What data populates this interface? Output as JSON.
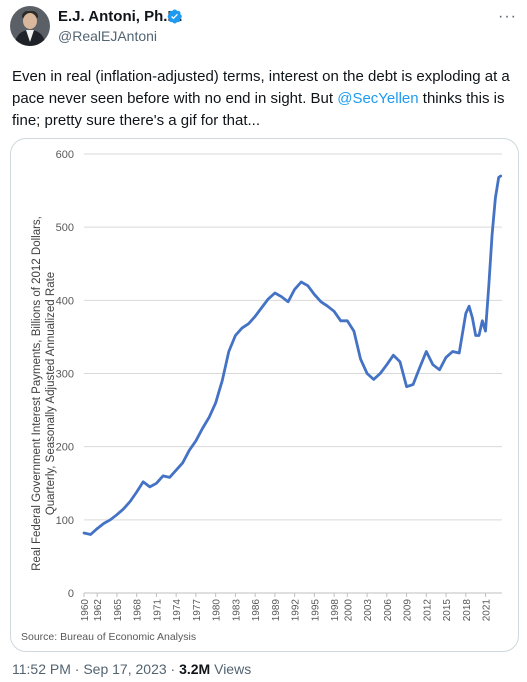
{
  "author": {
    "name": "E.J. Antoni, Ph.D.",
    "handle": "@RealEJAntoni",
    "verified": true,
    "verified_color": "#1d9bf0"
  },
  "menu_icon": "more-icon",
  "tweet": {
    "text_before": "Even in real (inflation-adjusted) terms, interest on the debt is exploding at a pace never seen before with no end in sight. But ",
    "mention": "@SecYellen",
    "text_after": " thinks this is fine; pretty sure there's a gif for that...",
    "mention_color": "#1d9bf0"
  },
  "footer": {
    "time": "11:52 PM",
    "separator": "·",
    "date": "Sep 17, 2023",
    "views_count": "3.2M",
    "views_label": "Views"
  },
  "chart_data": {
    "type": "line",
    "title": "",
    "ylabel": "Real Federal Government Interest Payments, Billions of 2012 Dollars, Quarterly, Seasonally Adjusted Annualized Rate",
    "ylabel_lines": [
      "Real Federal Government Interest Payments, Billions of 2012 Dollars,",
      "Quarterly, Seasonally Adjusted Annualized Rate"
    ],
    "xlabel": "",
    "source": "Source: Bureau of Economic Analysis",
    "line_color": "#4472c4",
    "grid": true,
    "ylim": [
      0,
      600
    ],
    "xlim": [
      1960,
      2023.5
    ],
    "y_ticks": [
      0,
      100,
      200,
      300,
      400,
      500,
      600
    ],
    "x_ticks": [
      1960,
      1962,
      1965,
      1968,
      1971,
      1974,
      1977,
      1980,
      1983,
      1986,
      1989,
      1992,
      1995,
      1998,
      2000,
      2003,
      2006,
      2009,
      2012,
      2015,
      2018,
      2021
    ],
    "series": [
      {
        "x": [
          1960,
          1961,
          1962,
          1963,
          1964,
          1965,
          1966,
          1967,
          1968,
          1969,
          1970,
          1971,
          1972,
          1973,
          1974,
          1975,
          1976,
          1977,
          1978,
          1979,
          1980,
          1980.5,
          1981,
          1982,
          1983,
          1984,
          1985,
          1986,
          1987,
          1988,
          1989,
          1990,
          1991,
          1992,
          1993,
          1994,
          1995,
          1996,
          1997,
          1998,
          1999,
          2000,
          2001,
          2002,
          2003,
          2003.5,
          2004,
          2005,
          2006,
          2007,
          2008,
          2009,
          2010,
          2011,
          2012,
          2013,
          2014,
          2015,
          2016,
          2017,
          2018,
          2018.5,
          2019,
          2019.5,
          2020,
          2020.5,
          2021,
          2021.5,
          2022,
          2022.5,
          2023,
          2023.3
        ],
        "values": [
          82,
          80,
          88,
          95,
          100,
          107,
          115,
          125,
          138,
          152,
          145,
          150,
          160,
          158,
          168,
          178,
          195,
          208,
          225,
          240,
          260,
          275,
          290,
          330,
          352,
          362,
          368,
          378,
          390,
          402,
          410,
          405,
          398,
          415,
          425,
          420,
          408,
          398,
          392,
          385,
          372,
          372,
          358,
          320,
          300,
          296,
          292,
          300,
          312,
          325,
          316,
          282,
          285,
          308,
          330,
          312,
          305,
          322,
          330,
          328,
          382,
          392,
          376,
          352,
          352,
          372,
          358,
          420,
          490,
          540,
          568,
          570
        ]
      }
    ]
  }
}
